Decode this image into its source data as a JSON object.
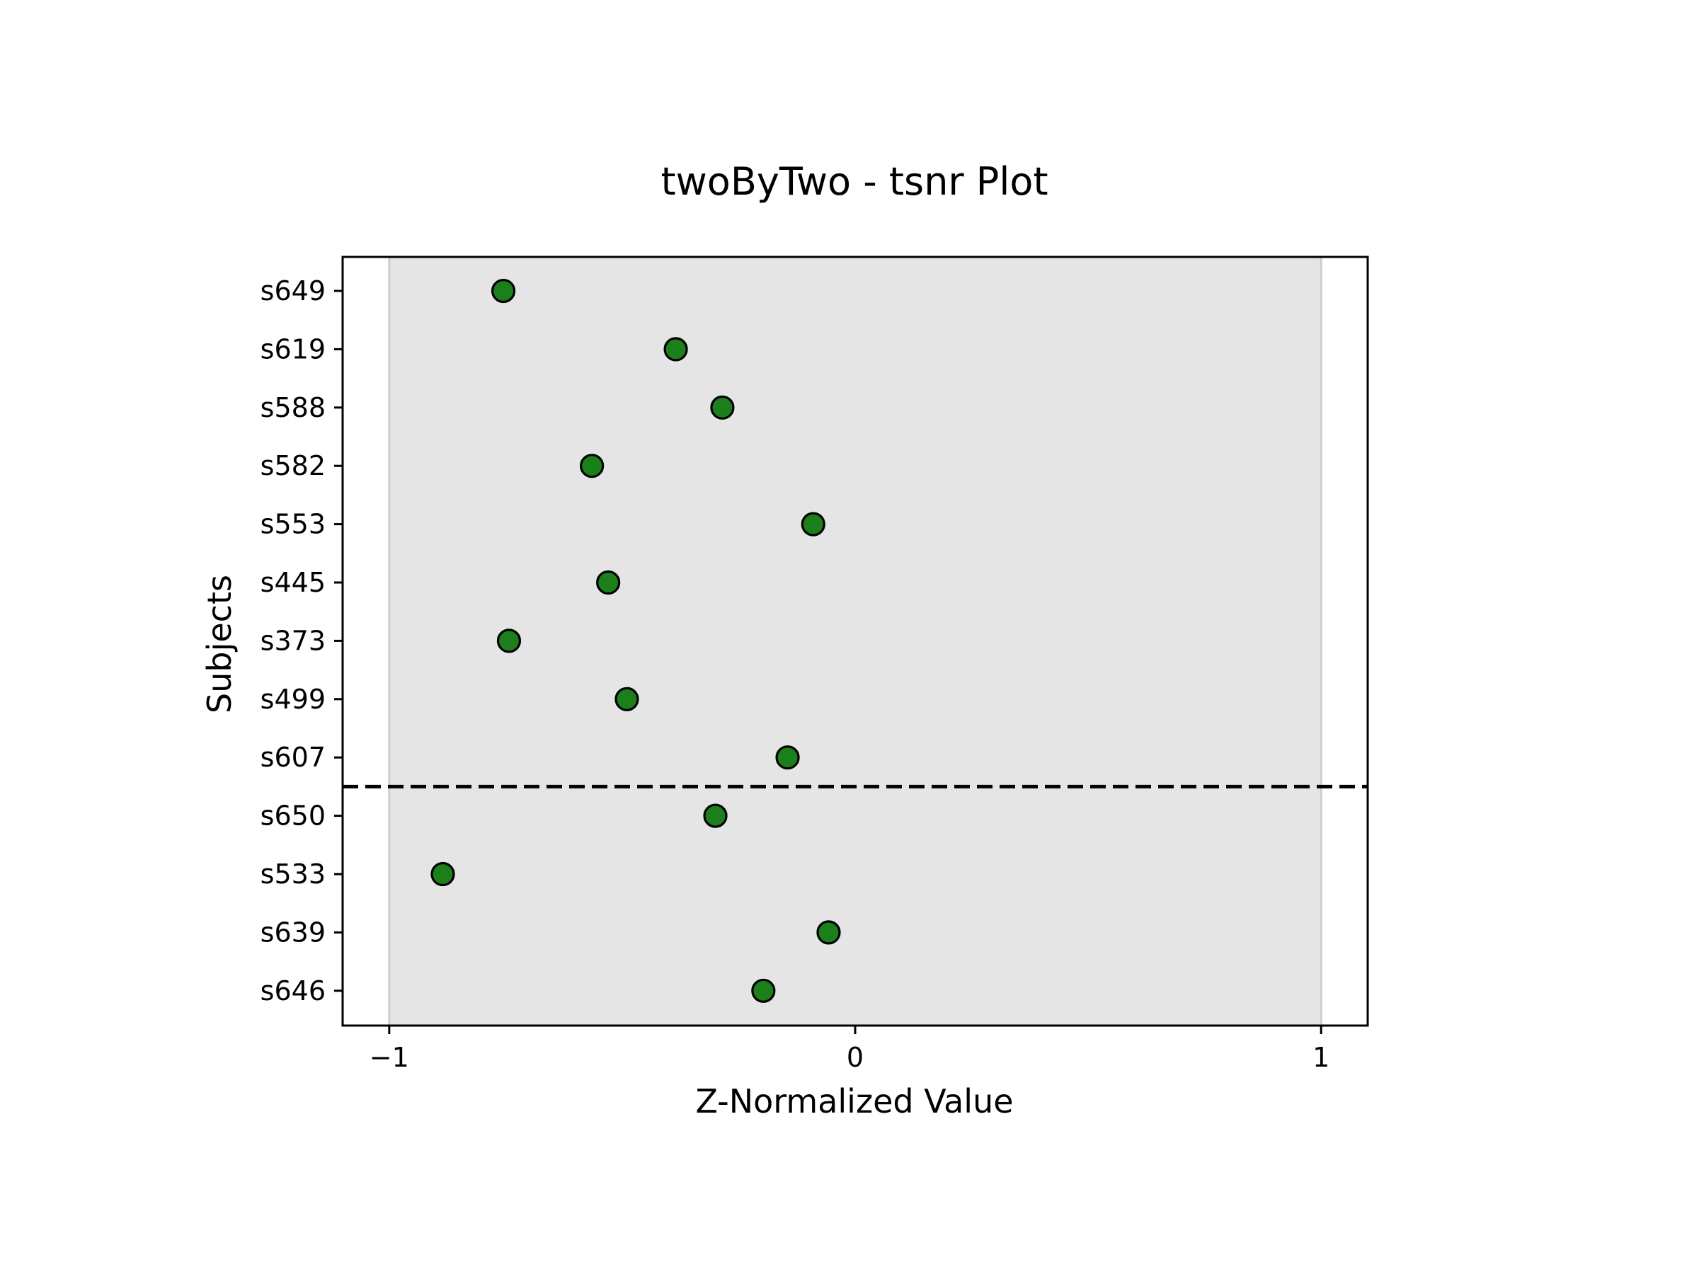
{
  "chart_data": {
    "type": "scatter",
    "title": "twoByTwo - tsnr Plot",
    "xlabel": "Z-Normalized Value",
    "ylabel": "Subjects",
    "xlim": [
      -1.1,
      1.1
    ],
    "xticks": [
      -1,
      0,
      1
    ],
    "xtick_labels": [
      "−1",
      "0",
      "1"
    ],
    "shaded_band": [
      -1,
      1
    ],
    "grid": false,
    "legend": "none",
    "categories": [
      "s649",
      "s619",
      "s588",
      "s582",
      "s553",
      "s445",
      "s373",
      "s499",
      "s607",
      "s650",
      "s533",
      "s639",
      "s646"
    ],
    "values": [
      -0.755,
      -0.385,
      -0.285,
      -0.565,
      -0.09,
      -0.53,
      -0.743,
      -0.49,
      -0.145,
      -0.3,
      -0.885,
      -0.057,
      -0.197
    ],
    "divider_after": "s607",
    "colors": {
      "marker_fill": "#1b7f1b",
      "marker_edge": "#000000",
      "band": "#e5e5e5",
      "band_edge": "#cccccc",
      "divider": "#000000"
    }
  }
}
